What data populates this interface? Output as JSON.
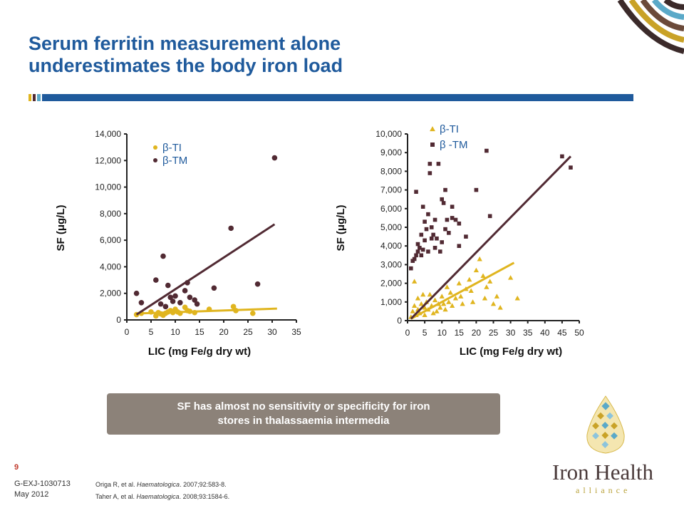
{
  "slide": {
    "title_line1": "Serum ferritin measurement alone",
    "title_line2": "underestimates the body iron load",
    "note_line1": "SF has almost no sensitivity or specificity for iron",
    "note_line2": "stores in thalassaemia intermedia",
    "page_number": "9",
    "code": "G-EXJ-1030713",
    "date": "May 2012",
    "ref1_authors": "Origa R, et al. ",
    "ref1_journal": "Haematologica",
    "ref1_rest": ". 2007;92:583-8.",
    "ref2_authors": "Taher A, et al. ",
    "ref2_journal": "Haematologica",
    "ref2_rest": ". 2008;93:1584-6.",
    "logo_name": "Iron Health",
    "logo_sub": "alliance"
  },
  "colors": {
    "title": "#1f5a9c",
    "ti": "#e0b51f",
    "tm": "#512a33",
    "note_bg": "#8c8279"
  },
  "chart_data": [
    {
      "type": "scatter",
      "xlabel": "LIC (mg Fe/g dry wt)",
      "ylabel": "SF (μg/L)",
      "xlim": [
        0,
        35
      ],
      "ylim": [
        0,
        14000
      ],
      "xticks": [
        0,
        5,
        10,
        15,
        20,
        25,
        30,
        35
      ],
      "yticks": [
        0,
        2000,
        4000,
        6000,
        8000,
        10000,
        12000,
        14000
      ],
      "xtick_labels": [
        "0",
        "5",
        "10",
        "15",
        "20",
        "25",
        "30",
        "35"
      ],
      "ytick_labels": [
        "0",
        "2,000",
        "4,000",
        "6,000",
        "8,000",
        "10,000",
        "12,000",
        "14,000"
      ],
      "legend_position": "top-left",
      "series": [
        {
          "name": "β-TI",
          "marker": "circle",
          "color": "#e0b51f",
          "points": [
            [
              2,
              400
            ],
            [
              3,
              500
            ],
            [
              5,
              600
            ],
            [
              6,
              300
            ],
            [
              6.5,
              550
            ],
            [
              7,
              450
            ],
            [
              7.5,
              350
            ],
            [
              8,
              500
            ],
            [
              8.5,
              600
            ],
            [
              9,
              700
            ],
            [
              9.5,
              550
            ],
            [
              10,
              800
            ],
            [
              10.5,
              600
            ],
            [
              11,
              500
            ],
            [
              12,
              950
            ],
            [
              12.5,
              700
            ],
            [
              13,
              650
            ],
            [
              14,
              550
            ],
            [
              17,
              800
            ],
            [
              22,
              1000
            ],
            [
              22.5,
              700
            ],
            [
              26,
              500
            ]
          ],
          "trend": [
            [
              2,
              480
            ],
            [
              31,
              850
            ]
          ]
        },
        {
          "name": "β-TM",
          "marker": "circle",
          "color": "#512a33",
          "points": [
            [
              2,
              2000
            ],
            [
              3,
              1300
            ],
            [
              6,
              3000
            ],
            [
              7,
              1200
            ],
            [
              7.5,
              4800
            ],
            [
              8,
              1000
            ],
            [
              8.5,
              2600
            ],
            [
              9,
              1700
            ],
            [
              9.5,
              1400
            ],
            [
              10,
              1800
            ],
            [
              11,
              1300
            ],
            [
              12,
              2200
            ],
            [
              12.5,
              2800
            ],
            [
              13,
              1700
            ],
            [
              14,
              1500
            ],
            [
              14.5,
              1200
            ],
            [
              18,
              2400
            ],
            [
              21.5,
              6900
            ],
            [
              27,
              2700
            ],
            [
              30.5,
              12200
            ]
          ],
          "trend": [
            [
              2,
              400
            ],
            [
              30.5,
              7200
            ]
          ]
        }
      ]
    },
    {
      "type": "scatter",
      "xlabel": "LIC (mg Fe/g dry wt)",
      "ylabel": "SF (μg/L)",
      "xlim": [
        0,
        50
      ],
      "ylim": [
        0,
        10000
      ],
      "xticks": [
        0,
        5,
        10,
        15,
        20,
        25,
        30,
        35,
        40,
        45,
        50
      ],
      "yticks": [
        0,
        1000,
        2000,
        3000,
        4000,
        5000,
        6000,
        7000,
        8000,
        9000,
        10000
      ],
      "xtick_labels": [
        "0",
        "5",
        "10",
        "15",
        "20",
        "25",
        "30",
        "35",
        "40",
        "45",
        "50"
      ],
      "ytick_labels": [
        "0",
        "1,000",
        "2,000",
        "3,000",
        "4,000",
        "5,000",
        "6,000",
        "7,000",
        "8,000",
        "9,000",
        "10,000"
      ],
      "legend_position": "top-left",
      "series": [
        {
          "name": "β-TI",
          "marker": "triangle",
          "color": "#e0b51f",
          "points": [
            [
              1,
              200
            ],
            [
              1.5,
              500
            ],
            [
              2,
              2100
            ],
            [
              2,
              800
            ],
            [
              2.5,
              300
            ],
            [
              3,
              600
            ],
            [
              3,
              1200
            ],
            [
              3.5,
              400
            ],
            [
              4,
              900
            ],
            [
              4.5,
              1400
            ],
            [
              5,
              700
            ],
            [
              5,
              300
            ],
            [
              5.5,
              1000
            ],
            [
              6,
              600
            ],
            [
              6.5,
              1400
            ],
            [
              7,
              800
            ],
            [
              7.5,
              400
            ],
            [
              8,
              1100
            ],
            [
              8.5,
              500
            ],
            [
              9,
              900
            ],
            [
              9.5,
              700
            ],
            [
              10,
              1300
            ],
            [
              10.5,
              900
            ],
            [
              11,
              600
            ],
            [
              11.5,
              1800
            ],
            [
              12,
              1000
            ],
            [
              12.5,
              1500
            ],
            [
              13,
              800
            ],
            [
              14,
              1200
            ],
            [
              15,
              2000
            ],
            [
              15.5,
              1300
            ],
            [
              16,
              900
            ],
            [
              17,
              1700
            ],
            [
              18,
              2200
            ],
            [
              18.5,
              1600
            ],
            [
              19,
              1000
            ],
            [
              20,
              2700
            ],
            [
              21,
              3300
            ],
            [
              22,
              2400
            ],
            [
              22.5,
              1200
            ],
            [
              23,
              1800
            ],
            [
              24,
              2100
            ],
            [
              25,
              900
            ],
            [
              26,
              1300
            ],
            [
              27,
              700
            ],
            [
              30,
              2300
            ],
            [
              32,
              1200
            ]
          ],
          "trend": [
            [
              1,
              100
            ],
            [
              31,
              3100
            ]
          ]
        },
        {
          "name": "β -TM",
          "marker": "square",
          "color": "#512a33",
          "points": [
            [
              1,
              2800
            ],
            [
              1.5,
              3200
            ],
            [
              2,
              3300
            ],
            [
              2.5,
              3500
            ],
            [
              2.5,
              6900
            ],
            [
              3,
              3700
            ],
            [
              3,
              4100
            ],
            [
              3.5,
              3900
            ],
            [
              4,
              3500
            ],
            [
              4,
              4600
            ],
            [
              4.5,
              6100
            ],
            [
              4.5,
              3800
            ],
            [
              5,
              4300
            ],
            [
              5,
              5300
            ],
            [
              5.5,
              4900
            ],
            [
              6,
              3700
            ],
            [
              6,
              5700
            ],
            [
              6.5,
              8400
            ],
            [
              6.5,
              7900
            ],
            [
              7,
              4400
            ],
            [
              7,
              5000
            ],
            [
              7.5,
              4600
            ],
            [
              8,
              3900
            ],
            [
              8,
              5400
            ],
            [
              8.5,
              4400
            ],
            [
              9,
              8400
            ],
            [
              9.5,
              3700
            ],
            [
              10,
              4200
            ],
            [
              10,
              6500
            ],
            [
              10.5,
              6300
            ],
            [
              11,
              7000
            ],
            [
              11,
              4900
            ],
            [
              11.5,
              5400
            ],
            [
              12,
              4700
            ],
            [
              13,
              5500
            ],
            [
              13,
              6100
            ],
            [
              14,
              5400
            ],
            [
              15,
              5200
            ],
            [
              15,
              4000
            ],
            [
              17,
              4500
            ],
            [
              20,
              7000
            ],
            [
              23,
              9100
            ],
            [
              24,
              5600
            ],
            [
              45,
              8800
            ],
            [
              47.5,
              8200
            ]
          ],
          "trend": [
            [
              1,
              100
            ],
            [
              47.5,
              8800
            ]
          ]
        }
      ]
    }
  ]
}
